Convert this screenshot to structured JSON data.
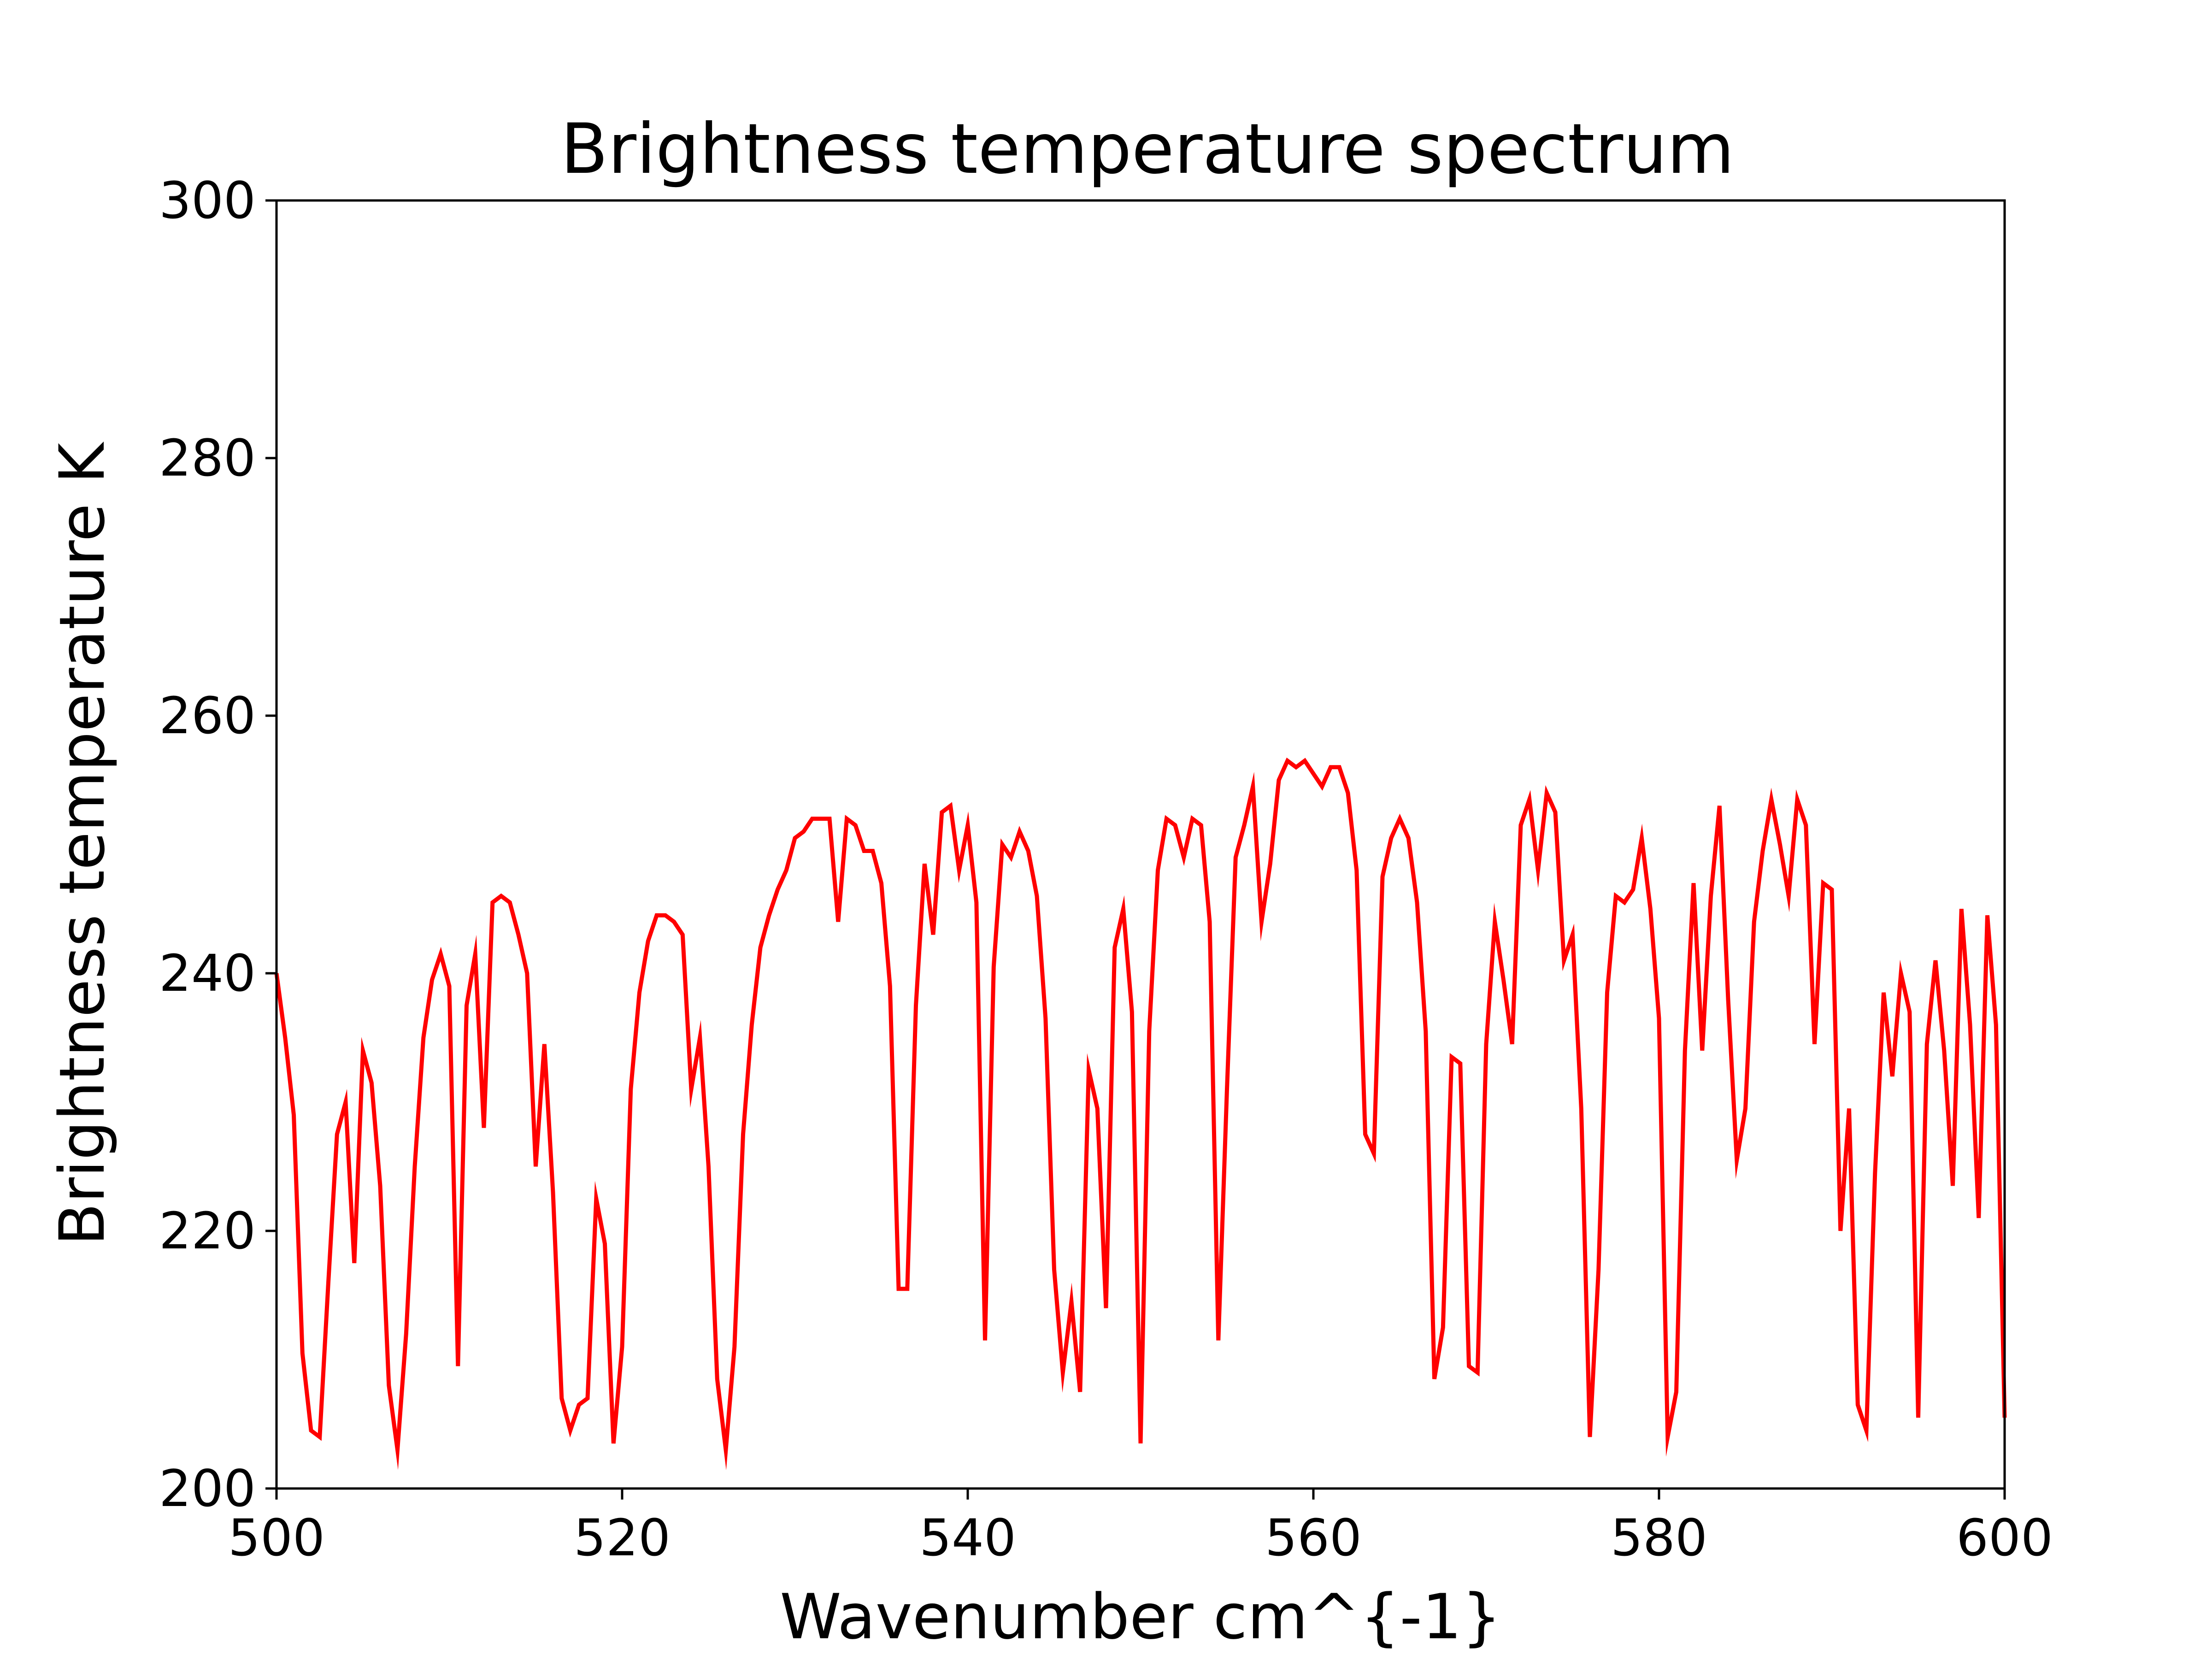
{
  "chart_data": {
    "type": "line",
    "title": "Brightness temperature spectrum",
    "xlabel": "Wavenumber   cm^{-1}",
    "ylabel": "Brightness temperature   K",
    "xlim": [
      500,
      600
    ],
    "ylim": [
      200,
      300
    ],
    "xticks": [
      "500",
      "520",
      "540",
      "560",
      "580",
      "600"
    ],
    "yticks": [
      "200",
      "220",
      "240",
      "260",
      "280",
      "300"
    ],
    "grid": false,
    "legend": "none",
    "series": [
      {
        "color": "#ff0000",
        "x": [
          500.0,
          500.5,
          501.0,
          501.5,
          502.0,
          502.5,
          503.0,
          503.5,
          504.0,
          504.5,
          505.0,
          505.5,
          506.0,
          506.5,
          507.0,
          507.5,
          508.0,
          508.5,
          509.0,
          509.5,
          510.0,
          510.5,
          511.0,
          511.5,
          512.0,
          512.5,
          513.0,
          513.5,
          514.0,
          514.5,
          515.0,
          515.5,
          516.0,
          516.5,
          517.0,
          517.5,
          518.0,
          518.5,
          519.0,
          519.5,
          520.0,
          520.5,
          521.0,
          521.5,
          522.0,
          522.5,
          523.0,
          523.5,
          524.0,
          524.5,
          525.0,
          525.5,
          526.0,
          526.5,
          527.0,
          527.5,
          528.0,
          528.5,
          529.0,
          529.5,
          530.0,
          530.5,
          531.0,
          531.5,
          532.0,
          532.5,
          533.0,
          533.5,
          534.0,
          534.5,
          535.0,
          535.5,
          536.0,
          536.5,
          537.0,
          537.5,
          538.0,
          538.5,
          539.0,
          539.5,
          540.0,
          540.5,
          541.0,
          541.5,
          542.0,
          542.5,
          543.0,
          543.5,
          544.0,
          544.5,
          545.0,
          545.5,
          546.0,
          546.5,
          547.0,
          547.5,
          548.0,
          548.5,
          549.0,
          549.5,
          550.0,
          550.5,
          551.0,
          551.5,
          552.0,
          552.5,
          553.0,
          553.5,
          554.0,
          554.5,
          555.0,
          555.5,
          556.0,
          556.5,
          557.0,
          557.5,
          558.0,
          558.5,
          559.0,
          559.5,
          560.0,
          560.5,
          561.0,
          561.5,
          562.0,
          562.5,
          563.0,
          563.5,
          564.0,
          564.5,
          565.0,
          565.5,
          566.0,
          566.5,
          567.0,
          567.5,
          568.0,
          568.5,
          569.0,
          569.5,
          570.0,
          570.5,
          571.0,
          571.5,
          572.0,
          572.5,
          573.0,
          573.5,
          574.0,
          574.5,
          575.0,
          575.5,
          576.0,
          576.5,
          577.0,
          577.5,
          578.0,
          578.5,
          579.0,
          579.5,
          580.0,
          580.5,
          581.0,
          581.5,
          582.0,
          582.5,
          583.0,
          583.5,
          584.0,
          584.5,
          585.0,
          585.5,
          586.0,
          586.5,
          587.0,
          587.5,
          588.0,
          588.5,
          589.0,
          589.5,
          590.0,
          590.5,
          591.0,
          591.5,
          592.0,
          592.5,
          593.0,
          593.5,
          594.0,
          594.5,
          595.0,
          595.5,
          596.0,
          596.5,
          597.0,
          597.5,
          598.0,
          598.5,
          599.0,
          599.5,
          600.0
        ],
        "y": [
          240.0,
          235.0,
          229.0,
          210.5,
          204.5,
          204.0,
          216.0,
          227.5,
          230.0,
          217.5,
          234.0,
          231.5,
          223.5,
          208.0,
          203.0,
          212.0,
          225.0,
          235.0,
          239.5,
          241.5,
          239.0,
          209.5,
          237.5,
          241.5,
          228.0,
          245.5,
          246.0,
          245.5,
          243.0,
          240.0,
          225.0,
          234.5,
          223.0,
          207.0,
          204.5,
          206.5,
          207.0,
          222.5,
          219.0,
          203.5,
          211.0,
          231.0,
          238.5,
          242.5,
          244.5,
          244.5,
          244.0,
          243.0,
          231.0,
          235.0,
          225.0,
          208.5,
          203.0,
          211.0,
          227.5,
          236.0,
          242.0,
          244.5,
          246.5,
          248.0,
          250.5,
          251.0,
          252.0,
          252.0,
          252.0,
          244.0,
          252.0,
          251.5,
          249.5,
          249.5,
          247.0,
          239.0,
          215.5,
          215.5,
          237.5,
          248.5,
          243.0,
          252.5,
          253.0,
          248.0,
          251.5,
          245.5,
          211.5,
          240.5,
          250.0,
          249.0,
          251.0,
          249.5,
          246.0,
          236.5,
          217.0,
          209.0,
          214.5,
          207.5,
          232.5,
          229.5,
          214.0,
          242.0,
          245.0,
          237.0,
          203.5,
          235.5,
          248.0,
          252.0,
          251.5,
          249.0,
          252.0,
          251.5,
          244.0,
          211.5,
          231.0,
          249.0,
          251.5,
          254.5,
          244.0,
          248.5,
          255.0,
          256.5,
          256.0,
          256.5,
          255.5,
          254.5,
          256.0,
          256.0,
          254.0,
          248.0,
          227.5,
          226.0,
          247.5,
          250.5,
          252.0,
          250.5,
          245.5,
          235.5,
          208.5,
          212.5,
          233.5,
          233.0,
          209.5,
          209.0,
          234.5,
          244.0,
          239.5,
          234.5,
          251.5,
          253.5,
          248.0,
          254.0,
          252.5,
          241.0,
          243.0,
          229.5,
          204.0,
          217.0,
          238.5,
          246.0,
          245.5,
          246.5,
          250.5,
          245.0,
          236.5,
          204.0,
          207.5,
          234.0,
          247.0,
          234.0,
          246.0,
          253.0,
          238.0,
          225.5,
          229.5,
          244.0,
          249.5,
          253.5,
          250.0,
          246.0,
          253.5,
          251.5,
          234.5,
          247.0,
          246.5,
          220.0,
          229.5,
          206.5,
          204.5,
          224.5,
          238.5,
          232.0,
          240.0,
          237.0,
          205.5,
          234.5,
          241.0,
          234.0,
          223.5,
          245.0,
          236.0,
          221.0,
          244.5,
          236.0,
          205.5
        ]
      }
    ]
  }
}
